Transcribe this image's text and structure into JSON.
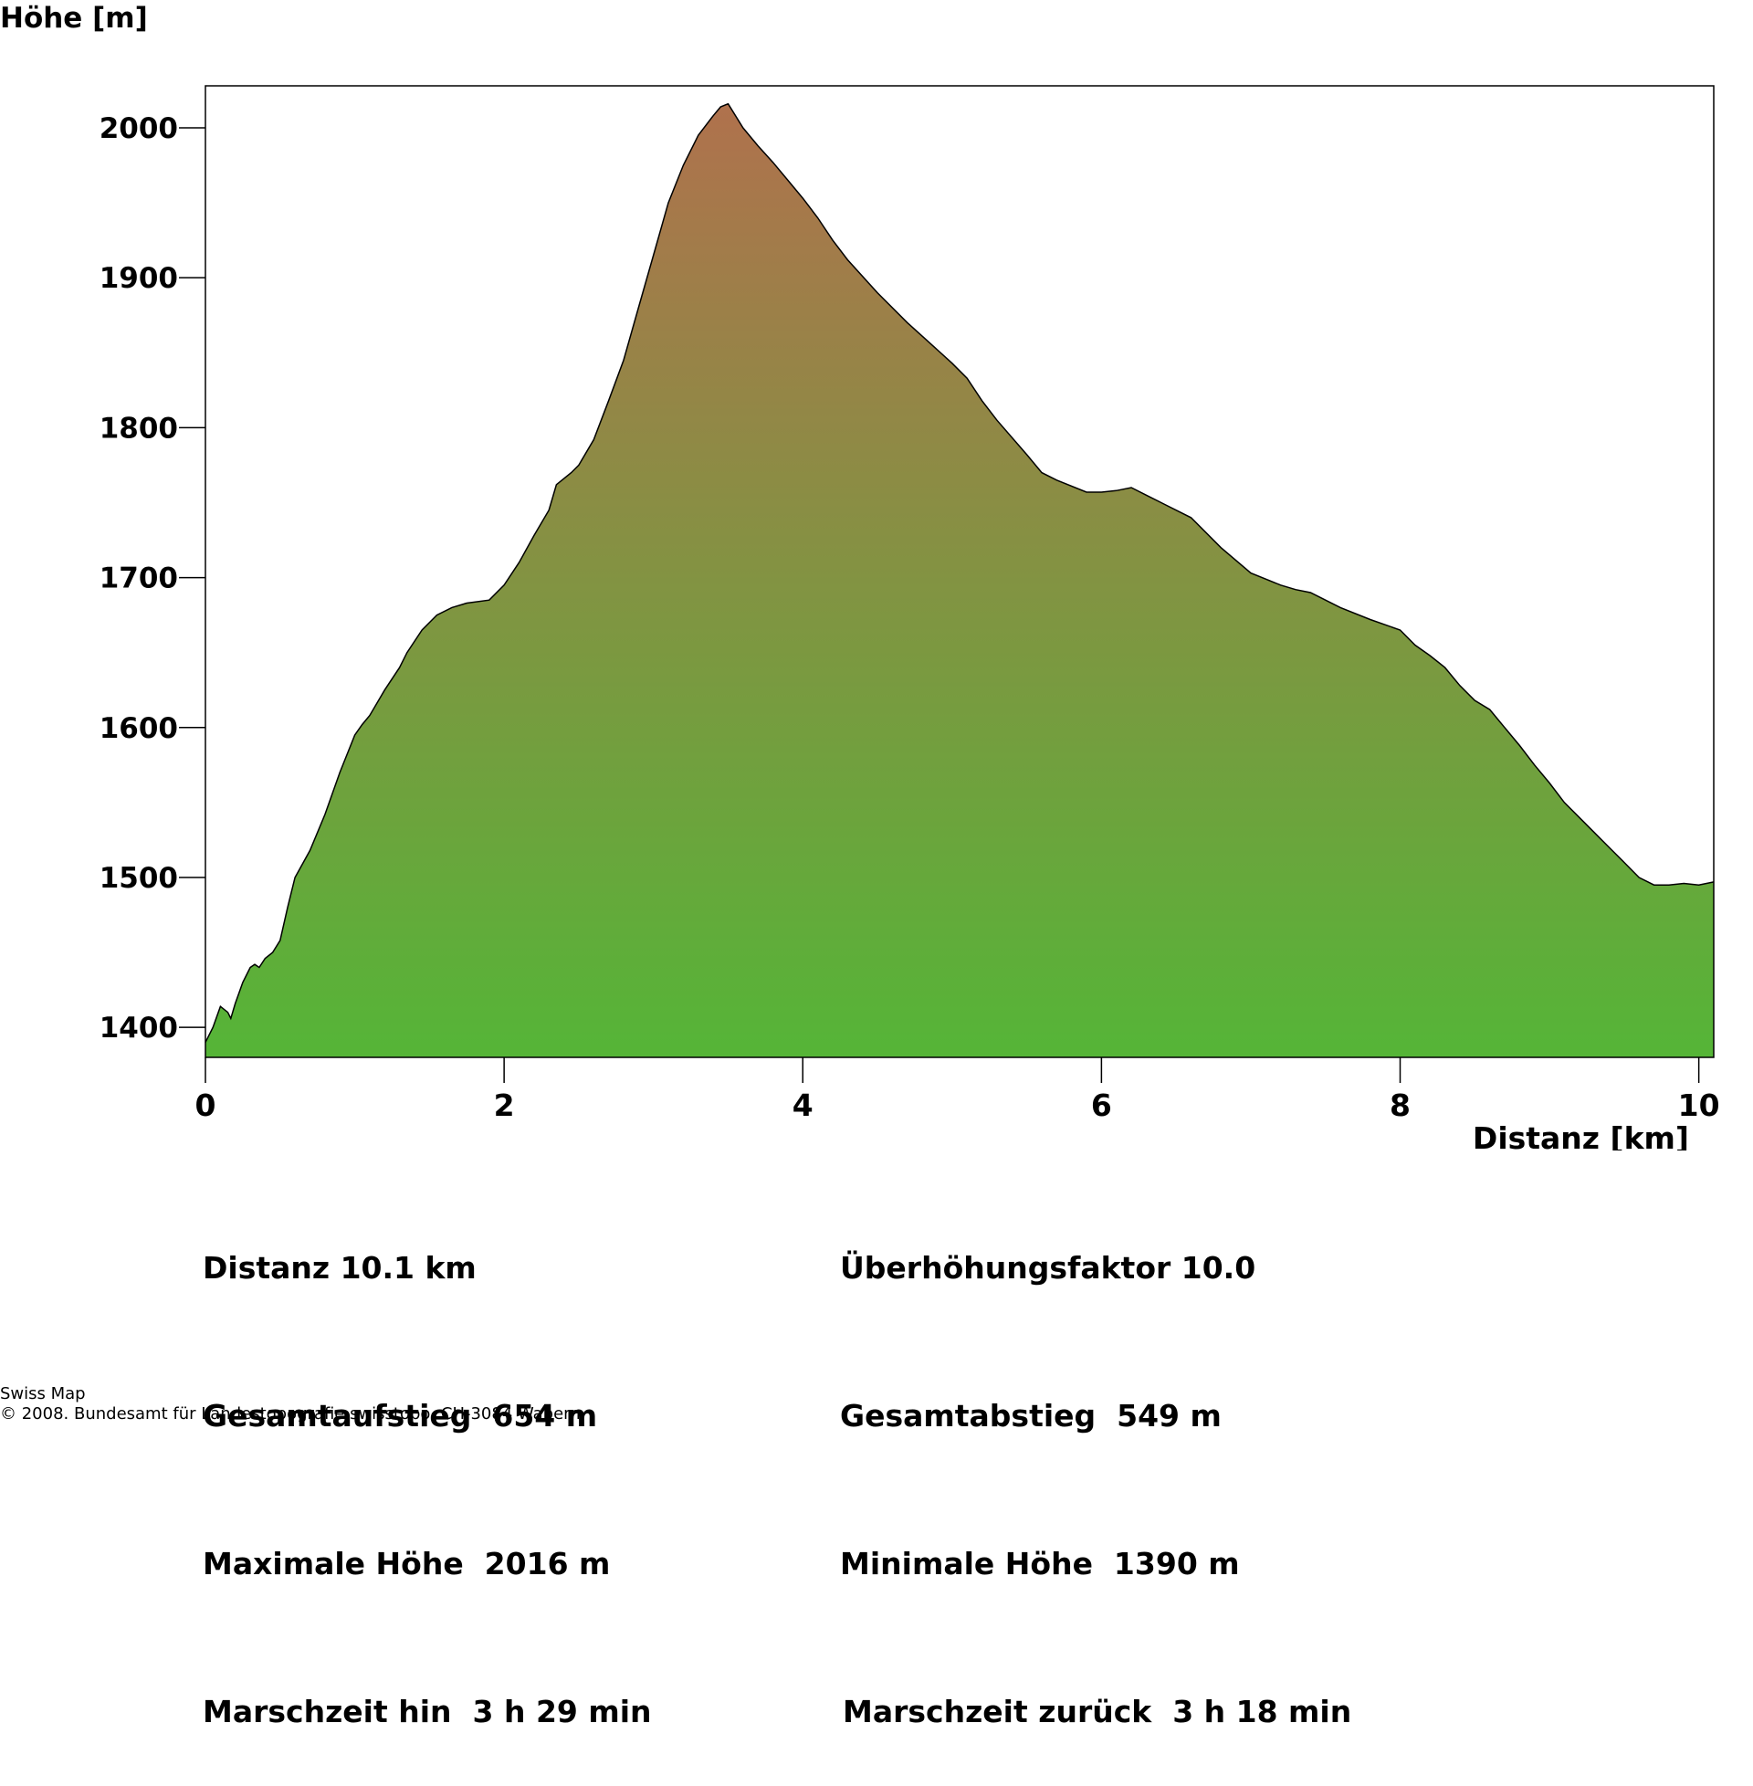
{
  "chart_data": {
    "type": "area",
    "ylabel": "Höhe [m]",
    "xlabel": "Distanz [km]",
    "xlim": [
      0,
      10.1
    ],
    "ylim": [
      1380,
      2028
    ],
    "xticks": [
      0,
      2,
      4,
      6,
      8,
      10
    ],
    "yticks": [
      1400,
      1500,
      1600,
      1700,
      1800,
      1900,
      2000
    ],
    "grid": false,
    "legend": "none",
    "fill_gradient": {
      "low": "#55b537",
      "high": "#b0714d"
    },
    "line_color": "#000000",
    "x": [
      0,
      0.05,
      0.1,
      0.15,
      0.17,
      0.2,
      0.25,
      0.3,
      0.33,
      0.36,
      0.4,
      0.45,
      0.5,
      0.55,
      0.6,
      0.7,
      0.8,
      0.9,
      1.0,
      1.05,
      1.1,
      1.2,
      1.3,
      1.35,
      1.45,
      1.55,
      1.65,
      1.75,
      1.9,
      2.0,
      2.1,
      2.2,
      2.3,
      2.35,
      2.45,
      2.5,
      2.6,
      2.7,
      2.8,
      2.9,
      3.0,
      3.1,
      3.2,
      3.3,
      3.4,
      3.45,
      3.5,
      3.6,
      3.7,
      3.8,
      3.9,
      4.0,
      4.1,
      4.2,
      4.3,
      4.5,
      4.7,
      4.9,
      5.0,
      5.1,
      5.2,
      5.3,
      5.5,
      5.6,
      5.7,
      5.9,
      6.0,
      6.1,
      6.2,
      6.3,
      6.4,
      6.6,
      6.8,
      7.0,
      7.2,
      7.3,
      7.4,
      7.6,
      7.8,
      8.0,
      8.1,
      8.2,
      8.3,
      8.4,
      8.5,
      8.6,
      8.7,
      8.8,
      8.9,
      9.0,
      9.1,
      9.2,
      9.3,
      9.4,
      9.5,
      9.6,
      9.7,
      9.8,
      9.9,
      10.0,
      10.1
    ],
    "values": [
      1390,
      1400,
      1414,
      1410,
      1406,
      1416,
      1430,
      1440,
      1442,
      1440,
      1446,
      1450,
      1458,
      1480,
      1500,
      1518,
      1542,
      1570,
      1595,
      1602,
      1608,
      1625,
      1640,
      1650,
      1665,
      1675,
      1680,
      1683,
      1685,
      1695,
      1710,
      1728,
      1745,
      1762,
      1770,
      1775,
      1792,
      1818,
      1845,
      1880,
      1915,
      1950,
      1975,
      1995,
      2008,
      2014,
      2016,
      2000,
      1988,
      1977,
      1965,
      1953,
      1940,
      1925,
      1912,
      1890,
      1870,
      1852,
      1843,
      1833,
      1818,
      1805,
      1782,
      1770,
      1765,
      1757,
      1757,
      1758,
      1760,
      1755,
      1750,
      1740,
      1720,
      1703,
      1695,
      1692,
      1690,
      1680,
      1672,
      1665,
      1655,
      1648,
      1640,
      1628,
      1618,
      1612,
      1600,
      1588,
      1575,
      1563,
      1550,
      1540,
      1530,
      1520,
      1510,
      1500,
      1495,
      1495,
      1496,
      1495,
      1497
    ]
  },
  "stats": {
    "distance": "Distanz 10.1 km",
    "exaggeration": "Überhöhungsfaktor 10.0",
    "ascent": "Gesamtaufstieg  654 m",
    "descent": "Gesamtabstieg  549 m",
    "max_height": "Maximale Höhe  2016 m",
    "min_height": "Minimale Höhe  1390 m",
    "time_out": "Marschzeit hin  3 h 29 min",
    "time_back": "Marschzeit zurück  3 h 18 min"
  },
  "footer": {
    "line1": "Swiss Map",
    "line2": "© 2008. Bundesamt für Landestopografie swisstopo, CH-3084 Wabern"
  }
}
